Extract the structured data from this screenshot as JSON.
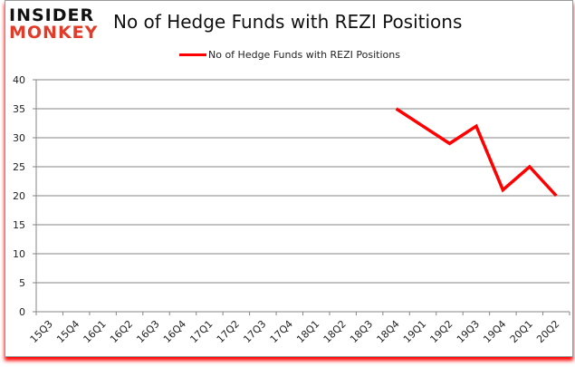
{
  "logo": {
    "line1": "INSIDER",
    "line2": "MONKEY"
  },
  "chart_data": {
    "type": "line",
    "title": "No of Hedge Funds with REZI Positions",
    "xlabel": "",
    "ylabel": "",
    "ylim": [
      0,
      40
    ],
    "yticks": [
      0,
      5,
      10,
      15,
      20,
      25,
      30,
      35,
      40
    ],
    "grid": true,
    "legend_position": "top",
    "categories": [
      "15Q3",
      "15Q4",
      "16Q1",
      "16Q2",
      "16Q3",
      "16Q4",
      "17Q1",
      "17Q2",
      "17Q3",
      "17Q4",
      "18Q1",
      "18Q2",
      "18Q3",
      "18Q4",
      "19Q1",
      "19Q2",
      "19Q3",
      "19Q4",
      "20Q1",
      "20Q2"
    ],
    "series": [
      {
        "name": "No of Hedge Funds with REZI Positions",
        "color": "#ff0000",
        "values": [
          null,
          null,
          null,
          null,
          null,
          null,
          null,
          null,
          null,
          null,
          null,
          null,
          null,
          35,
          32,
          29,
          32,
          21,
          25,
          20
        ]
      }
    ]
  }
}
